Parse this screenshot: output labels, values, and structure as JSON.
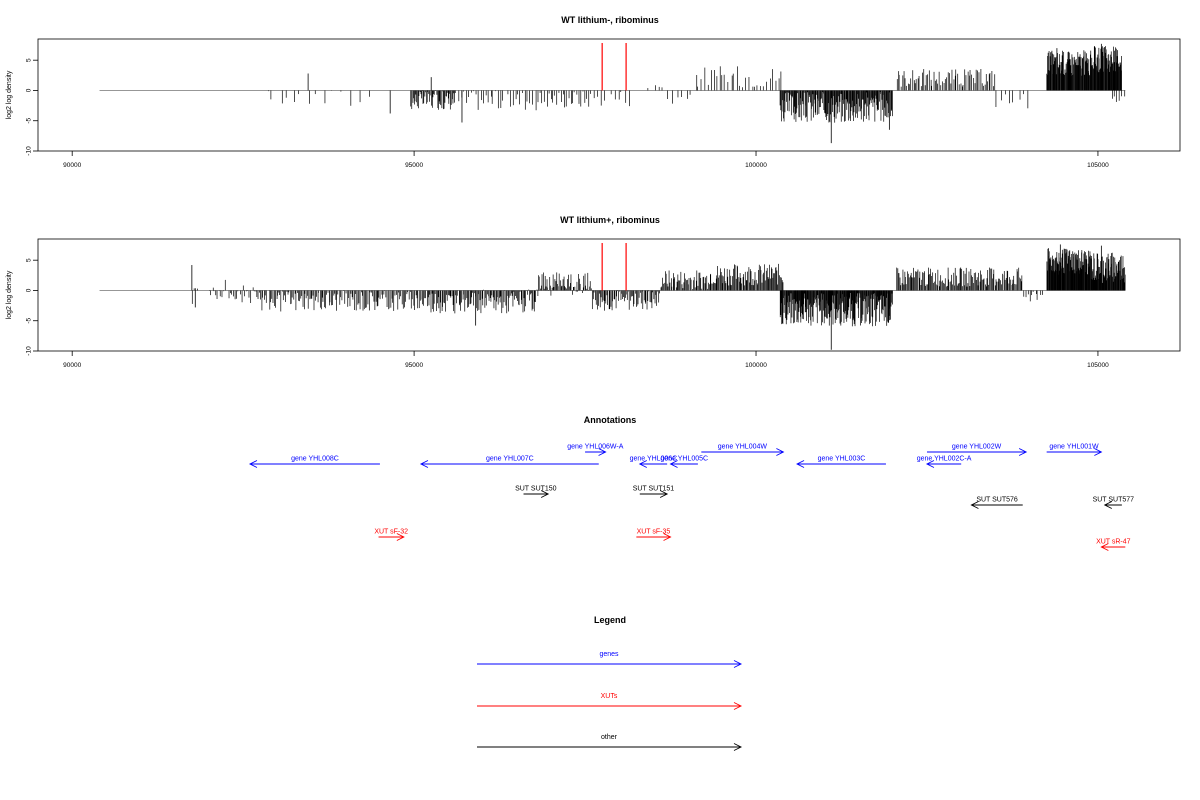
{
  "chart_data": [
    {
      "type": "bar",
      "title": "WT lithium-, ribominus",
      "ylabel": "log2 log density",
      "xlim": [
        89500,
        106200
      ],
      "ylim": [
        -10,
        8.5
      ],
      "xticks": [
        "90000",
        "95000",
        "100000",
        "105000"
      ],
      "yticks": [
        "-10",
        "-5",
        "0",
        "5"
      ],
      "baseline": {
        "x": [
          90400,
          105400
        ],
        "y": 0
      },
      "markers": [
        97750,
        98100
      ],
      "marker_color": "#ff0000",
      "segments": [
        {
          "x": [
            92800,
            93300
          ],
          "mean": -1.2,
          "amp": 1.3,
          "bars": 5
        },
        {
          "x": [
            93300,
            94400
          ],
          "mean": -1.4,
          "amp": 1.8,
          "bars": 9
        },
        {
          "x": [
            94950,
            95600
          ],
          "mean": -1.6,
          "amp": 1.6,
          "bars": 55
        },
        {
          "x": [
            95600,
            96900
          ],
          "mean": -1.6,
          "amp": 1.7,
          "bars": 36
        },
        {
          "x": [
            96900,
            97600
          ],
          "mean": -1.4,
          "amp": 1.5,
          "bars": 24
        },
        {
          "x": [
            97600,
            98200
          ],
          "mean": -1.2,
          "amp": 1.4,
          "bars": 10
        },
        {
          "x": [
            98400,
            98700
          ],
          "mean": 0.6,
          "amp": 0.5,
          "bars": 4
        },
        {
          "x": [
            98700,
            99100
          ],
          "mean": -1.2,
          "amp": 1.6,
          "bars": 6
        },
        {
          "x": [
            99100,
            100400
          ],
          "mean": 2.3,
          "amp": 1.8,
          "bars": 30
        },
        {
          "x": [
            100350,
            102000
          ],
          "mean": -2.8,
          "amp": 2.6,
          "bars": 180
        },
        {
          "x": [
            102050,
            103500
          ],
          "mean": 2.1,
          "amp": 1.5,
          "bars": 70
        },
        {
          "x": [
            103500,
            104000
          ],
          "mean": -1.6,
          "amp": 1.4,
          "bars": 8
        },
        {
          "x": [
            104250,
            104900
          ],
          "mean": 4.5,
          "amp": 2.2,
          "bars": 95
        },
        {
          "x": [
            104900,
            105350
          ],
          "mean": 5.2,
          "amp": 2.2,
          "bars": 70
        },
        {
          "x": [
            105200,
            105400
          ],
          "mean": -1.5,
          "amp": 1.0,
          "bars": 6
        }
      ],
      "spikes": [
        {
          "x": 93450,
          "y": 2.8
        },
        {
          "x": 94650,
          "y": -3.8
        },
        {
          "x": 95250,
          "y": 2.2
        },
        {
          "x": 95700,
          "y": -5.3
        },
        {
          "x": 101100,
          "y": -8.7
        },
        {
          "x": 101950,
          "y": -6.5
        },
        {
          "x": 104400,
          "y": 7.0
        },
        {
          "x": 105050,
          "y": 7.7
        }
      ]
    },
    {
      "type": "bar",
      "title": "WT lithium+, ribominus",
      "ylabel": "log2 log density",
      "xlim": [
        89500,
        106200
      ],
      "ylim": [
        -10,
        8.5
      ],
      "xticks": [
        "90000",
        "95000",
        "100000",
        "105000"
      ],
      "yticks": [
        "-10",
        "-5",
        "0",
        "5"
      ],
      "baseline": {
        "x": [
          90400,
          105400
        ],
        "y": 0
      },
      "markers": [
        97750,
        98100
      ],
      "marker_color": "#ff0000",
      "segments": [
        {
          "x": [
            91750,
            91850
          ],
          "mean": 0.5,
          "amp": 3.5,
          "bars": 4
        },
        {
          "x": [
            92000,
            92700
          ],
          "mean": -0.2,
          "amp": 2.2,
          "bars": 30
        },
        {
          "x": [
            92700,
            95200
          ],
          "mean": -1.7,
          "amp": 1.8,
          "bars": 150
        },
        {
          "x": [
            95200,
            96800
          ],
          "mean": -1.8,
          "amp": 2.0,
          "bars": 120
        },
        {
          "x": [
            96800,
            97600
          ],
          "mean": 0.8,
          "amp": 2.2,
          "bars": 60
        },
        {
          "x": [
            97600,
            98600
          ],
          "mean": -1.6,
          "amp": 1.8,
          "bars": 70
        },
        {
          "x": [
            98600,
            99300
          ],
          "mean": 1.8,
          "amp": 1.6,
          "bars": 50
        },
        {
          "x": [
            99300,
            100400
          ],
          "mean": 2.6,
          "amp": 1.8,
          "bars": 90
        },
        {
          "x": [
            100350,
            102000
          ],
          "mean": -3.2,
          "amp": 2.8,
          "bars": 230
        },
        {
          "x": [
            102050,
            103900
          ],
          "mean": 2.2,
          "amp": 1.6,
          "bars": 140
        },
        {
          "x": [
            103900,
            104200
          ],
          "mean": -0.8,
          "amp": 1.0,
          "bars": 10
        },
        {
          "x": [
            104250,
            104900
          ],
          "mean": 4.8,
          "amp": 2.2,
          "bars": 110
        },
        {
          "x": [
            104900,
            105400
          ],
          "mean": 3.8,
          "amp": 2.6,
          "bars": 80
        }
      ],
      "spikes": [
        {
          "x": 91750,
          "y": 4.2
        },
        {
          "x": 91800,
          "y": -2.8
        },
        {
          "x": 95900,
          "y": -5.8
        },
        {
          "x": 101100,
          "y": -9.8
        },
        {
          "x": 104450,
          "y": 7.6
        },
        {
          "x": 105050,
          "y": 7.4
        }
      ]
    }
  ],
  "annotations": {
    "title": "Annotations",
    "items": [
      {
        "label": "gene YHL008C",
        "color": "#0000ff",
        "from": 94500,
        "to": 92600,
        "y": 0
      },
      {
        "label": "gene YHL007C",
        "color": "#0000ff",
        "from": 97700,
        "to": 95100,
        "y": 0
      },
      {
        "label": "gene YHL006W-A",
        "color": "#0000ff",
        "from": 97500,
        "to": 97800,
        "y": 1
      },
      {
        "label": "gene YHL006C",
        "color": "#0000ff",
        "from": 98700,
        "to": 98300,
        "y": 0
      },
      {
        "label": "gene YHL005C",
        "color": "#0000ff",
        "from": 99150,
        "to": 98750,
        "y": 0
      },
      {
        "label": "gene YHL004W",
        "color": "#0000ff",
        "from": 99200,
        "to": 100400,
        "y": 1
      },
      {
        "label": "gene YHL003C",
        "color": "#0000ff",
        "from": 101900,
        "to": 100600,
        "y": 0
      },
      {
        "label": "gene YHL002C-A",
        "color": "#0000ff",
        "from": 103000,
        "to": 102500,
        "y": 0
      },
      {
        "label": "gene YHL002W",
        "color": "#0000ff",
        "from": 102500,
        "to": 103950,
        "y": 1
      },
      {
        "label": "gene YHL001W",
        "color": "#0000ff",
        "from": 104250,
        "to": 105050,
        "y": 1
      },
      {
        "label": "SUT SUT150",
        "color": "#000000",
        "from": 96600,
        "to": 96960,
        "y": 2
      },
      {
        "label": "SUT SUT151",
        "color": "#000000",
        "from": 98300,
        "to": 98700,
        "y": 2
      },
      {
        "label": "SUT SUT576",
        "color": "#000000",
        "from": 103900,
        "to": 103150,
        "y": 3
      },
      {
        "label": "SUT SUT577",
        "color": "#000000",
        "from": 105350,
        "to": 105100,
        "y": 3
      },
      {
        "label": "XUT sF-32",
        "color": "#ff0000",
        "from": 94480,
        "to": 94850,
        "y": 4
      },
      {
        "label": "XUT sF-35",
        "color": "#ff0000",
        "from": 98250,
        "to": 98750,
        "y": 4
      },
      {
        "label": "XUT sR-47",
        "color": "#ff0000",
        "from": 105400,
        "to": 105050,
        "y": 5
      }
    ]
  },
  "legend": {
    "title": "Legend",
    "items": [
      {
        "label": "genes",
        "color": "#0000ff"
      },
      {
        "label": "XUTs",
        "color": "#ff0000"
      },
      {
        "label": "other",
        "color": "#000000"
      }
    ]
  }
}
